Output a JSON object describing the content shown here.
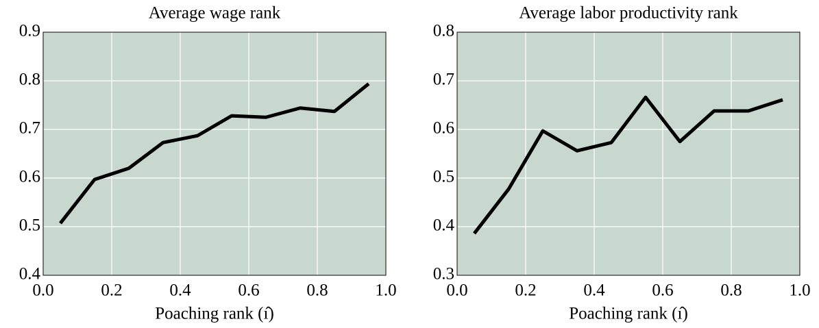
{
  "chart_data": [
    {
      "type": "line",
      "title": "Average wage rank",
      "x_label": "Poaching rank (ı̂)",
      "x": [
        0.05,
        0.15,
        0.25,
        0.35,
        0.45,
        0.55,
        0.65,
        0.75,
        0.85,
        0.95
      ],
      "values": [
        0.507,
        0.597,
        0.62,
        0.673,
        0.687,
        0.728,
        0.725,
        0.744,
        0.737,
        0.794
      ],
      "color": "#000000",
      "background": "#c9d8ce",
      "grid": true,
      "xlim": [
        0,
        1
      ],
      "xticks": [
        {
          "value": 0,
          "label": "0.0"
        },
        0.2,
        0.4,
        0.6,
        0.8,
        {
          "value": 1,
          "label": "1.0"
        }
      ],
      "ylim": [
        0.4,
        0.9
      ],
      "yticks": [
        0.4,
        0.5,
        0.6,
        0.7,
        0.8,
        0.9
      ]
    },
    {
      "type": "line",
      "title": "Average labor productivity rank",
      "x_label": "Poaching rank (ı̂)",
      "x": [
        0.05,
        0.15,
        0.25,
        0.35,
        0.45,
        0.55,
        0.65,
        0.75,
        0.85,
        0.95
      ],
      "values": [
        0.386,
        0.477,
        0.597,
        0.556,
        0.573,
        0.666,
        0.575,
        0.638,
        0.638,
        0.661
      ],
      "color": "#000000",
      "background": "#c9d8ce",
      "grid": true,
      "xlim": [
        0,
        1
      ],
      "xticks": [
        {
          "value": 0,
          "label": "0.0"
        },
        0.2,
        0.4,
        0.6,
        0.8,
        {
          "value": 1,
          "label": "1.0"
        }
      ],
      "ylim": [
        0.3,
        0.8
      ],
      "yticks": [
        0.3,
        0.4,
        0.5,
        0.6,
        0.7,
        0.8
      ]
    }
  ]
}
